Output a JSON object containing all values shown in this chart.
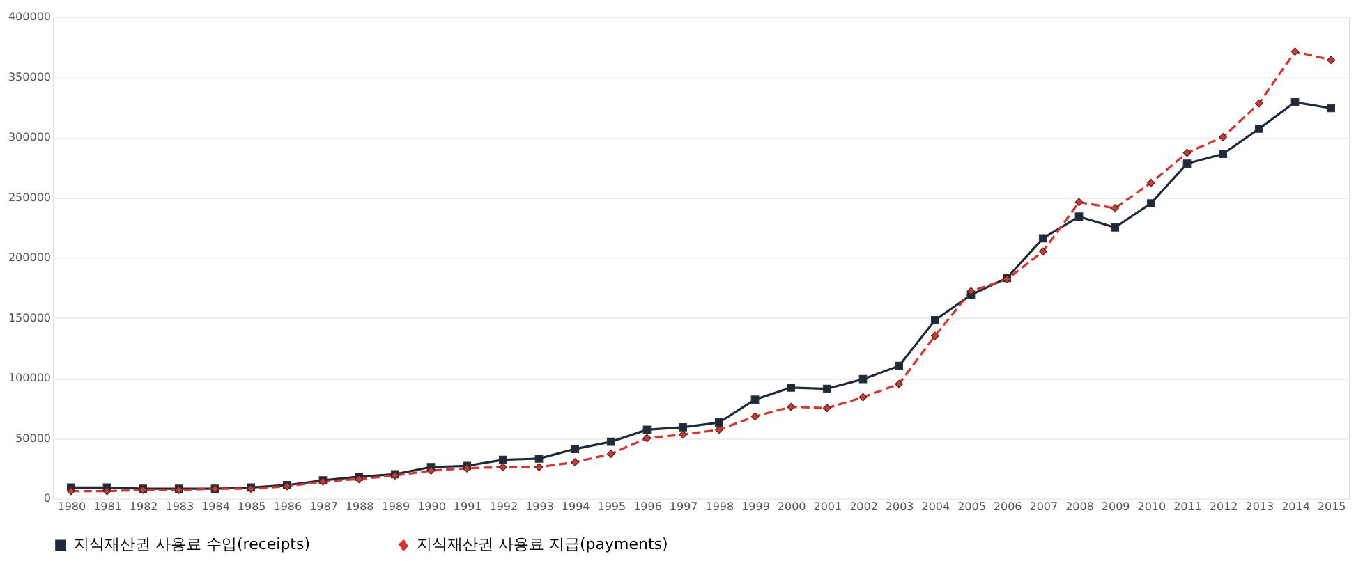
{
  "chart_data": {
    "type": "line",
    "categories": [
      "1980",
      "1981",
      "1982",
      "1983",
      "1984",
      "1985",
      "1986",
      "1987",
      "1988",
      "1989",
      "1990",
      "1991",
      "1992",
      "1993",
      "1994",
      "1995",
      "1996",
      "1997",
      "1998",
      "1999",
      "2000",
      "2001",
      "2002",
      "2003",
      "2004",
      "2005",
      "2006",
      "2007",
      "2008",
      "2009",
      "2010",
      "2011",
      "2012",
      "2013",
      "2014",
      "2015"
    ],
    "series": [
      {
        "name": "지식재산권 사용료 수입(receipts)",
        "color": "#1c2a3a",
        "marker": "square",
        "line_style": "solid",
        "values": [
          9000,
          9000,
          8000,
          8000,
          8000,
          9000,
          11000,
          15000,
          18000,
          20000,
          26000,
          27000,
          32000,
          33000,
          41000,
          47000,
          57000,
          59000,
          63000,
          82000,
          92000,
          91000,
          99000,
          110000,
          148000,
          169000,
          183000,
          216000,
          234000,
          225000,
          245000,
          278000,
          286000,
          307000,
          329000,
          324000
        ]
      },
      {
        "name": "지식재산권 사용료 지급(payments)",
        "color": "#e0302a",
        "marker": "diamond",
        "line_style": "dashed",
        "values": [
          6000,
          6000,
          7000,
          7000,
          8000,
          8000,
          10000,
          14000,
          16000,
          19000,
          23000,
          25000,
          26000,
          26000,
          30000,
          37000,
          50000,
          53000,
          57000,
          68000,
          76000,
          75000,
          84000,
          95000,
          135000,
          172000,
          182000,
          205000,
          246000,
          241000,
          262000,
          287000,
          300000,
          328000,
          371000,
          364000
        ]
      }
    ],
    "ylim": [
      0,
      400000
    ],
    "yticks": [
      0,
      50000,
      100000,
      150000,
      200000,
      250000,
      300000,
      350000,
      400000
    ],
    "grid": "y",
    "legend": "bottom"
  }
}
